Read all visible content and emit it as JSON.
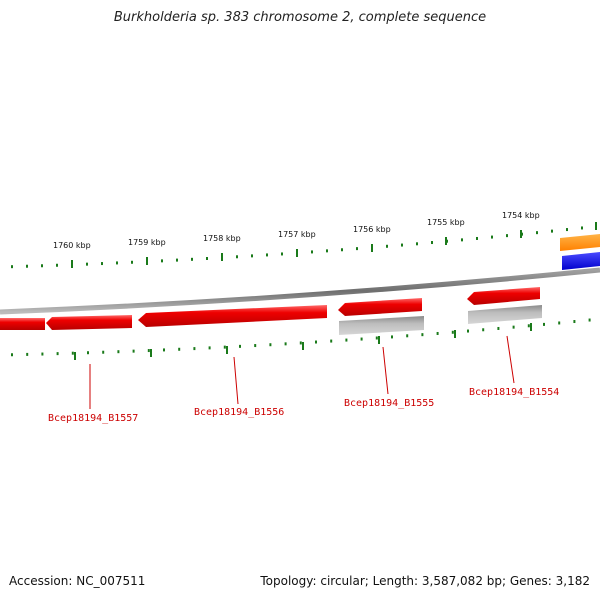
{
  "title": "Burkholderia sp. 383 chromosome 2, complete sequence",
  "footer": {
    "accession": "Accession: NC_007511",
    "summary": "Topology: circular; Length: 3,587,082 bp; Genes: 3,182"
  },
  "scale_labels": [
    "1760 kbp",
    "1759 kbp",
    "1758 kbp",
    "1757 kbp",
    "1756 kbp",
    "1755 kbp",
    "1754 kbp"
  ],
  "gene_labels": [
    "Bcep18194_B1557",
    "Bcep18194_B1556",
    "Bcep18194_B1555",
    "Bcep18194_B1554"
  ],
  "colors": {
    "backbone": "#7a7a7a",
    "gene_red": "#ee0000",
    "gene_gray": "#b0b0b0",
    "gene_orange": "#ff8c00",
    "gene_blue": "#0000ee",
    "tick": "#1a7a1a",
    "label": "#cc0000"
  }
}
